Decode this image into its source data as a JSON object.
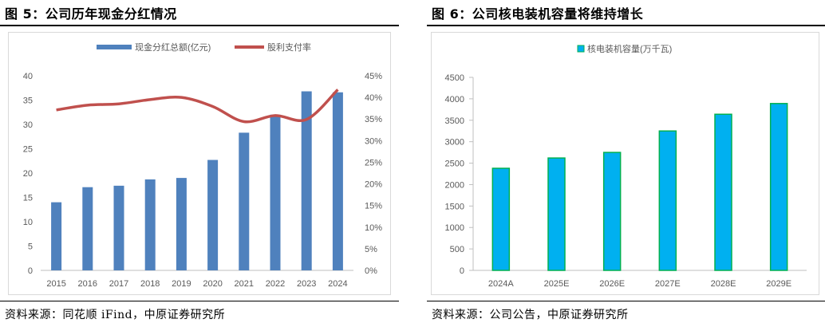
{
  "left": {
    "title": "图 5：公司历年现金分红情况",
    "source": "资料来源：同花顺 iFind，中原证券研究所",
    "chart_data": {
      "type": "bar",
      "categories": [
        "2015",
        "2016",
        "2017",
        "2018",
        "2019",
        "2020",
        "2021",
        "2022",
        "2023",
        "2024"
      ],
      "series": [
        {
          "name": "现金分红总额(亿元)",
          "type": "bar",
          "axis": "left",
          "color": "#4f81bd",
          "values": [
            14.0,
            17.1,
            17.4,
            18.7,
            19.0,
            22.7,
            28.3,
            32.0,
            36.8,
            36.6
          ]
        },
        {
          "name": "股利支付率",
          "type": "line",
          "axis": "right",
          "color": "#c0504d",
          "values": [
            37.1,
            38.2,
            38.5,
            39.5,
            40.0,
            37.9,
            34.4,
            35.8,
            34.9,
            41.8
          ]
        }
      ],
      "ylim": [
        0,
        40
      ],
      "yticks": [
        "0",
        "5",
        "10",
        "15",
        "20",
        "25",
        "30",
        "35",
        "40"
      ],
      "y2lim": [
        0,
        45
      ],
      "y2ticks": [
        "0%",
        "5%",
        "10%",
        "15%",
        "20%",
        "25%",
        "30%",
        "35%",
        "40%",
        "45%"
      ],
      "grid": false,
      "legend": "top"
    }
  },
  "right": {
    "title": "图 6：公司核电装机容量将维持增长",
    "source": "资料来源：公司公告，中原证券研究所",
    "chart_data": {
      "type": "bar",
      "categories": [
        "2024A",
        "2025E",
        "2026E",
        "2027E",
        "2028E",
        "2029E"
      ],
      "series": [
        {
          "name": "核电装机容量(万千瓦)",
          "color": "#00b0f0",
          "edge": "#00b050",
          "values": [
            2380,
            2620,
            2750,
            3250,
            3640,
            3890
          ]
        }
      ],
      "ylim": [
        0,
        4500
      ],
      "yticks": [
        "0",
        "500",
        "1000",
        "1500",
        "2000",
        "2500",
        "3000",
        "3500",
        "4000",
        "4500"
      ],
      "grid": false,
      "legend": "top"
    }
  }
}
